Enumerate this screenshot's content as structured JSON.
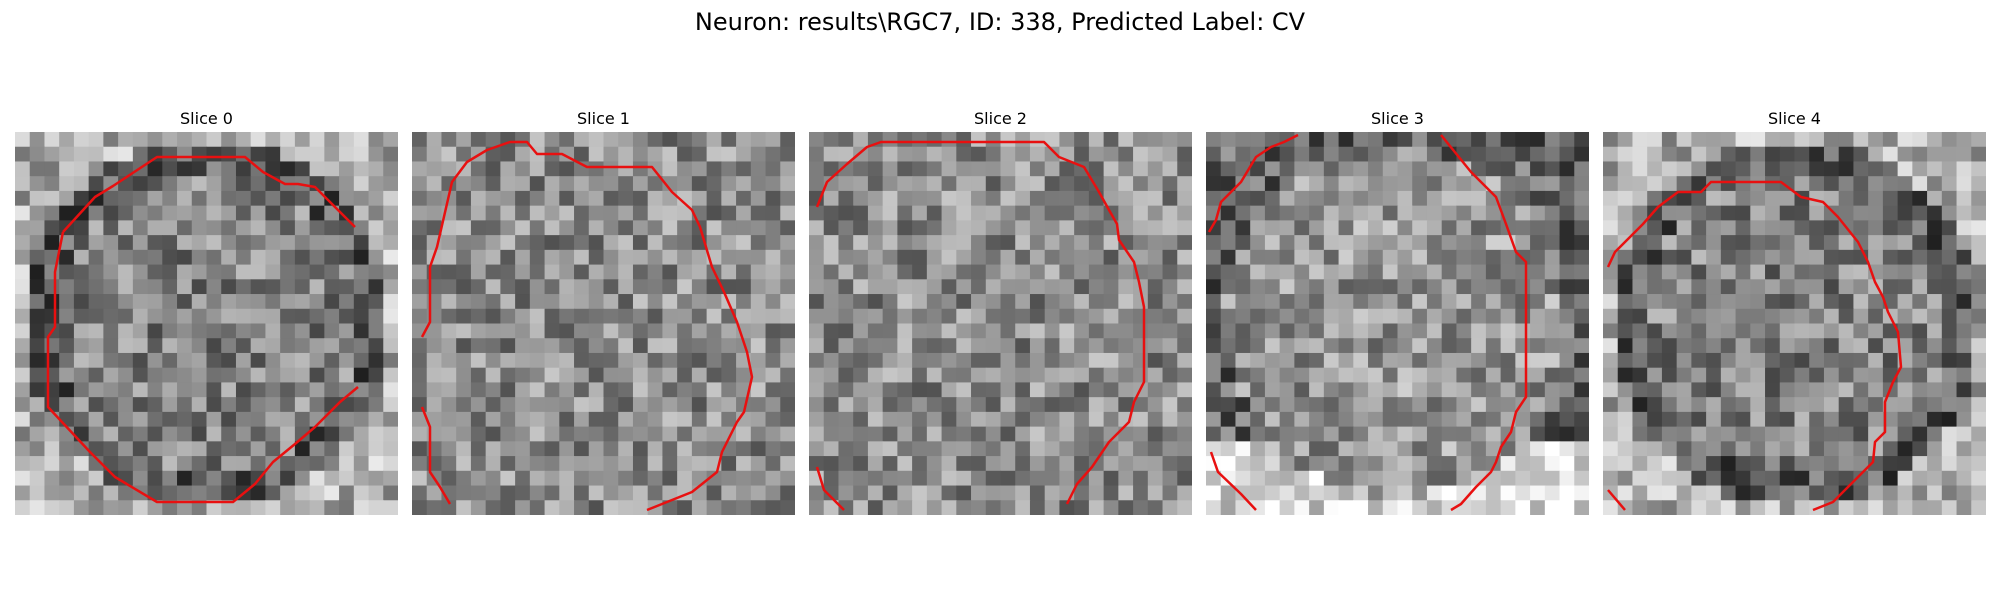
{
  "figure": {
    "title": "Neuron: results\\RGC7, ID: 338, Predicted Label: CV"
  },
  "panels": [
    {
      "title": "Slice 0",
      "contour_visible": true
    },
    {
      "title": "Slice 1",
      "contour_visible": true
    },
    {
      "title": "Slice 2",
      "contour_visible": true
    },
    {
      "title": "Slice 3",
      "contour_visible": true
    },
    {
      "title": "Slice 4",
      "contour_visible": true
    }
  ],
  "colors": {
    "contour": "#ff0000",
    "background": "#ffffff",
    "colormap": "gray"
  }
}
